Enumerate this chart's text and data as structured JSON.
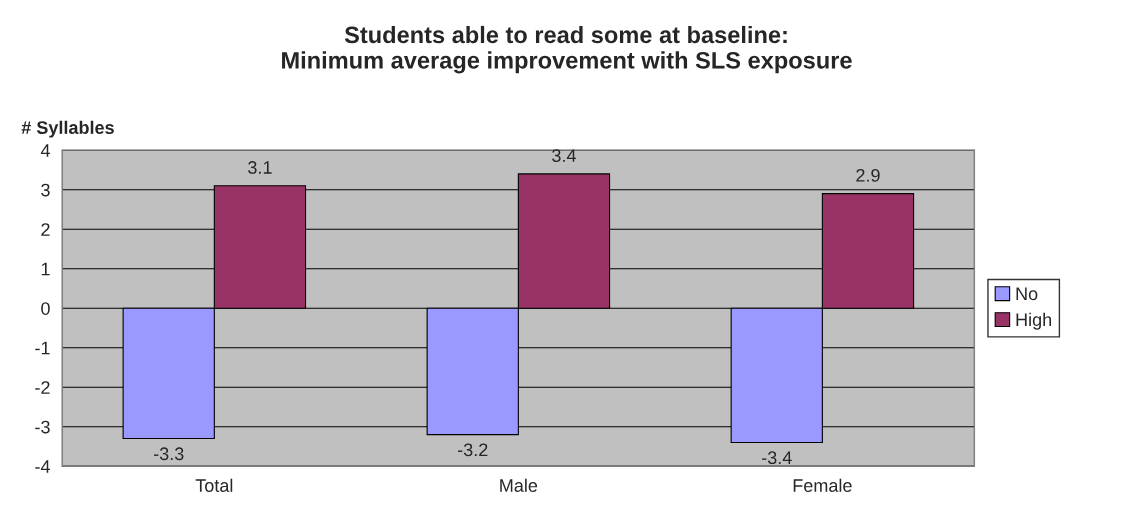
{
  "chart_data": {
    "type": "bar",
    "title": "Students able to read some at baseline:\nMinimum average improvement with SLS exposure",
    "ylabel": "# Syllables",
    "categories": [
      "Total",
      "Male",
      "Female"
    ],
    "series": [
      {
        "name": "No",
        "color": "#9999ff",
        "values": [
          -3.3,
          -3.2,
          -3.4
        ]
      },
      {
        "name": "High",
        "color": "#993366",
        "values": [
          3.1,
          3.4,
          2.9
        ]
      }
    ],
    "ylim": [
      -4,
      4
    ],
    "yticks": [
      -4,
      -3,
      -2,
      -1,
      0,
      1,
      2,
      3,
      4
    ],
    "grid": "y",
    "legend": "right",
    "data_labels": true
  }
}
